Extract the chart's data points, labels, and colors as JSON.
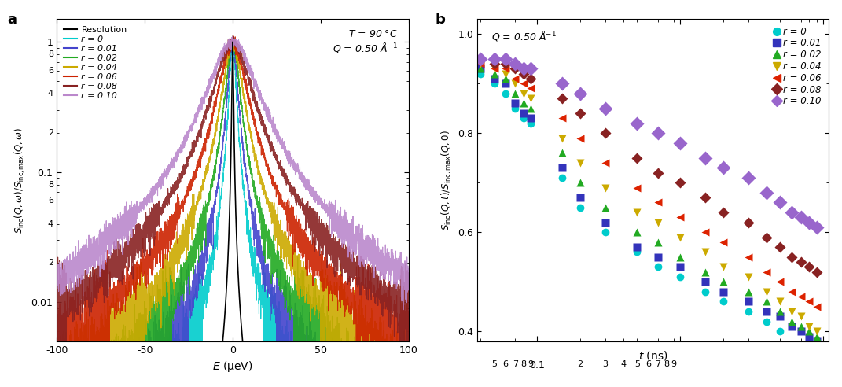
{
  "panel_a": {
    "xlabel": "E (μeV)",
    "ylabel": "S_inc(Q,ω)/S_inc,max(Q,ω)",
    "xlim": [
      -100,
      100
    ],
    "ylim_log": [
      0.005,
      1.5
    ],
    "noise_floor": 0.005,
    "series": [
      {
        "label": "Resolution",
        "color": "#000000",
        "gamma": 0.8,
        "lw": 1.2
      },
      {
        "label": "r = 0",
        "color": "#00CCCC",
        "gamma": 3.5,
        "lw": 0.8
      },
      {
        "label": "r = 0.01",
        "color": "#4444CC",
        "gamma": 5.0,
        "lw": 0.8
      },
      {
        "label": "r = 0.02",
        "color": "#22AA22",
        "gamma": 7.0,
        "lw": 0.8
      },
      {
        "label": "r = 0.04",
        "color": "#CCAA00",
        "gamma": 10.0,
        "lw": 0.8
      },
      {
        "label": "r = 0.06",
        "color": "#CC2200",
        "gamma": 14.0,
        "lw": 0.8
      },
      {
        "label": "r = 0.08",
        "color": "#882222",
        "gamma": 19.0,
        "lw": 0.8
      },
      {
        "label": "r = 0.10",
        "color": "#BB88CC",
        "gamma": 25.0,
        "lw": 0.8
      }
    ]
  },
  "panel_b": {
    "annotation": "Q = 0.50 Å⁻¹",
    "xlabel": "t (ns)",
    "ylabel": "S_inc(Q,t)/S_inc,max(Q,0)",
    "xlim_log": [
      0.038,
      11.0
    ],
    "ylim": [
      0.38,
      1.03
    ],
    "series": [
      {
        "label": "r = 0",
        "color": "#00CCCC",
        "marker": "o",
        "t": [
          0.04,
          0.05,
          0.06,
          0.07,
          0.08,
          0.09,
          0.15,
          0.2,
          0.3,
          0.5,
          0.7,
          1.0,
          1.5,
          2.0,
          3.0,
          4.0,
          5.0
        ],
        "S": [
          0.92,
          0.9,
          0.88,
          0.85,
          0.83,
          0.82,
          0.71,
          0.65,
          0.6,
          0.56,
          0.53,
          0.51,
          0.48,
          0.46,
          0.44,
          0.42,
          0.4
        ]
      },
      {
        "label": "r = 0.01",
        "color": "#3333BB",
        "marker": "s",
        "t": [
          0.04,
          0.05,
          0.06,
          0.07,
          0.08,
          0.09,
          0.15,
          0.2,
          0.3,
          0.5,
          0.7,
          1.0,
          1.5,
          2.0,
          3.0,
          4.0,
          5.0,
          6.0,
          7.0,
          8.0,
          9.0
        ],
        "S": [
          0.93,
          0.91,
          0.9,
          0.86,
          0.84,
          0.83,
          0.73,
          0.67,
          0.62,
          0.57,
          0.55,
          0.53,
          0.5,
          0.48,
          0.46,
          0.44,
          0.43,
          0.41,
          0.4,
          0.39,
          0.38
        ]
      },
      {
        "label": "r = 0.02",
        "color": "#22AA22",
        "marker": "^",
        "t": [
          0.04,
          0.05,
          0.06,
          0.07,
          0.08,
          0.09,
          0.15,
          0.2,
          0.3,
          0.5,
          0.7,
          1.0,
          1.5,
          2.0,
          3.0,
          4.0,
          5.0,
          6.0,
          7.0,
          8.0,
          9.0
        ],
        "S": [
          0.93,
          0.92,
          0.91,
          0.88,
          0.86,
          0.85,
          0.76,
          0.7,
          0.65,
          0.6,
          0.58,
          0.55,
          0.52,
          0.5,
          0.48,
          0.46,
          0.44,
          0.42,
          0.41,
          0.4,
          0.39
        ]
      },
      {
        "label": "r = 0.04",
        "color": "#CCAA00",
        "marker": "v",
        "t": [
          0.04,
          0.05,
          0.06,
          0.07,
          0.08,
          0.09,
          0.15,
          0.2,
          0.3,
          0.5,
          0.7,
          1.0,
          1.5,
          2.0,
          3.0,
          4.0,
          5.0,
          6.0,
          7.0,
          8.0,
          9.0
        ],
        "S": [
          0.94,
          0.93,
          0.92,
          0.9,
          0.88,
          0.87,
          0.79,
          0.74,
          0.69,
          0.64,
          0.62,
          0.59,
          0.56,
          0.53,
          0.51,
          0.48,
          0.46,
          0.44,
          0.43,
          0.41,
          0.4
        ]
      },
      {
        "label": "r = 0.06",
        "color": "#DD2200",
        "marker": "<",
        "t": [
          0.04,
          0.05,
          0.06,
          0.07,
          0.08,
          0.09,
          0.15,
          0.2,
          0.3,
          0.5,
          0.7,
          1.0,
          1.5,
          2.0,
          3.0,
          4.0,
          5.0,
          6.0,
          7.0,
          8.0,
          9.0
        ],
        "S": [
          0.94,
          0.93,
          0.93,
          0.91,
          0.9,
          0.89,
          0.83,
          0.79,
          0.74,
          0.69,
          0.66,
          0.63,
          0.6,
          0.58,
          0.55,
          0.52,
          0.5,
          0.48,
          0.47,
          0.46,
          0.45
        ]
      },
      {
        "label": "r = 0.08",
        "color": "#882222",
        "marker": "D",
        "t": [
          0.04,
          0.05,
          0.06,
          0.07,
          0.08,
          0.09,
          0.15,
          0.2,
          0.3,
          0.5,
          0.7,
          1.0,
          1.5,
          2.0,
          3.0,
          4.0,
          5.0,
          6.0,
          7.0,
          8.0,
          9.0
        ],
        "S": [
          0.95,
          0.94,
          0.94,
          0.93,
          0.92,
          0.91,
          0.87,
          0.84,
          0.8,
          0.75,
          0.72,
          0.7,
          0.67,
          0.64,
          0.62,
          0.59,
          0.57,
          0.55,
          0.54,
          0.53,
          0.52
        ]
      },
      {
        "label": "r = 0.10",
        "color": "#9966CC",
        "marker": "D",
        "t": [
          0.04,
          0.05,
          0.06,
          0.07,
          0.08,
          0.09,
          0.15,
          0.2,
          0.3,
          0.5,
          0.7,
          1.0,
          1.5,
          2.0,
          3.0,
          4.0,
          5.0,
          6.0,
          7.0,
          8.0,
          9.0
        ],
        "S": [
          0.95,
          0.95,
          0.95,
          0.94,
          0.93,
          0.93,
          0.9,
          0.88,
          0.85,
          0.82,
          0.8,
          0.78,
          0.75,
          0.73,
          0.71,
          0.68,
          0.66,
          0.64,
          0.63,
          0.62,
          0.61
        ]
      }
    ]
  }
}
